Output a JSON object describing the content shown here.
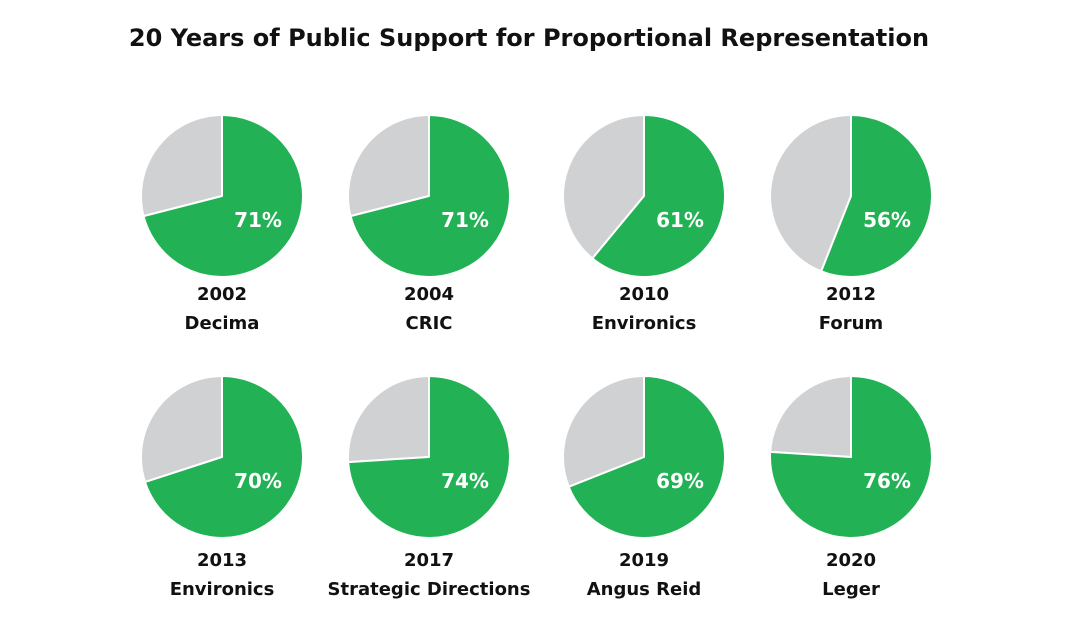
{
  "chart_data": {
    "type": "pie",
    "title": "20 Years of Public Support for Proportional Representation",
    "colors": {
      "support": "#22b155",
      "other": "#d0d1d3",
      "slice_border": "#ffffff",
      "label": "#ffffff",
      "caption": "#111111"
    },
    "polls": [
      {
        "year": "2002",
        "pollster": "Decima",
        "value": 71,
        "label": "71%"
      },
      {
        "year": "2004",
        "pollster": "CRIC",
        "value": 71,
        "label": "71%"
      },
      {
        "year": "2010",
        "pollster": "Environics",
        "value": 61,
        "label": "61%"
      },
      {
        "year": "2012",
        "pollster": "Forum",
        "value": 56,
        "label": "56%"
      },
      {
        "year": "2013",
        "pollster": "Environics",
        "value": 70,
        "label": "70%"
      },
      {
        "year": "2017",
        "pollster": "Strategic Directions",
        "value": 74,
        "label": "74%"
      },
      {
        "year": "2019",
        "pollster": "Angus Reid",
        "value": 69,
        "label": "69%"
      },
      {
        "year": "2020",
        "pollster": "Leger",
        "value": 76,
        "label": "76%"
      }
    ]
  }
}
